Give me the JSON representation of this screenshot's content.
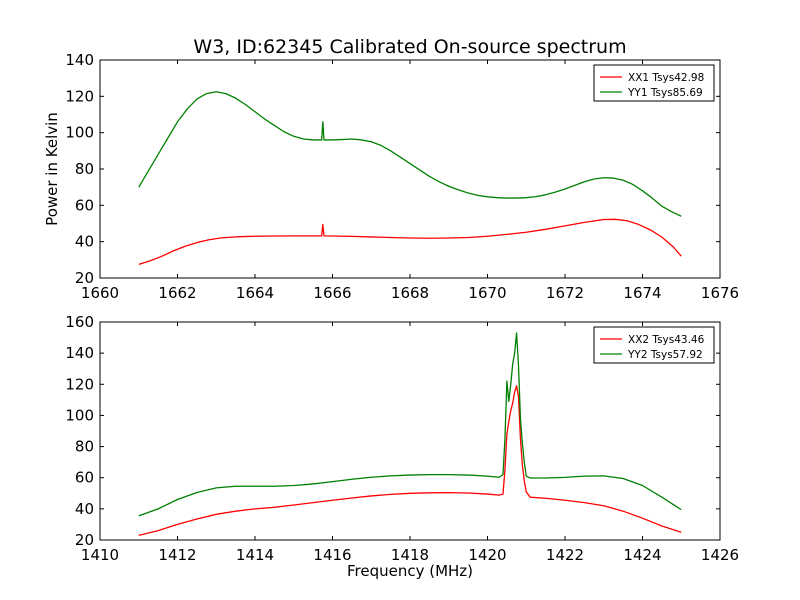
{
  "title": "W3, ID:62345 Calibrated On-source spectrum",
  "chart_data": [
    {
      "type": "line",
      "xlim": [
        1660,
        1676
      ],
      "ylim": [
        20,
        140
      ],
      "xticks": [
        1660,
        1662,
        1664,
        1666,
        1668,
        1670,
        1672,
        1674,
        1676
      ],
      "yticks": [
        20,
        40,
        60,
        80,
        100,
        120,
        140
      ],
      "xlabel": "",
      "ylabel": "Power in Kelvin",
      "grid": false,
      "legend_position": "top-right",
      "series": [
        {
          "name": "XX1 Tsys42.98",
          "color": "#ff0000",
          "x": [
            1661.0,
            1661.3,
            1661.6,
            1661.9,
            1662.2,
            1662.5,
            1662.8,
            1663.1,
            1663.4,
            1663.7,
            1664.0,
            1664.5,
            1665.0,
            1665.5,
            1665.72,
            1665.75,
            1665.78,
            1666.0,
            1666.5,
            1667.0,
            1667.5,
            1668.0,
            1668.5,
            1669.0,
            1669.5,
            1670.0,
            1670.5,
            1671.0,
            1671.5,
            1672.0,
            1672.5,
            1673.0,
            1673.3,
            1673.6,
            1673.9,
            1674.2,
            1674.5,
            1674.8,
            1675.0
          ],
          "values": [
            27.5,
            29.5,
            32,
            35,
            37.5,
            39.5,
            41,
            42,
            42.5,
            42.8,
            43,
            43.1,
            43.2,
            43.2,
            43.2,
            49.5,
            43.2,
            43.1,
            42.9,
            42.6,
            42.3,
            42,
            41.9,
            42,
            42.3,
            43,
            44,
            45.2,
            46.8,
            48.7,
            50.6,
            52.2,
            52.3,
            51.5,
            49.5,
            46.5,
            42.5,
            37,
            32
          ]
        },
        {
          "name": "YY1 Tsys85.69",
          "color": "#008000",
          "x": [
            1661.0,
            1661.25,
            1661.5,
            1661.75,
            1662.0,
            1662.25,
            1662.5,
            1662.75,
            1663.0,
            1663.25,
            1663.5,
            1663.75,
            1664.0,
            1664.25,
            1664.5,
            1664.75,
            1665.0,
            1665.25,
            1665.5,
            1665.72,
            1665.75,
            1665.78,
            1666.0,
            1666.25,
            1666.5,
            1666.75,
            1667.0,
            1667.25,
            1667.5,
            1667.75,
            1668.0,
            1668.25,
            1668.5,
            1668.75,
            1669.0,
            1669.25,
            1669.5,
            1669.75,
            1670.0,
            1670.25,
            1670.5,
            1670.75,
            1671.0,
            1671.25,
            1671.5,
            1671.75,
            1672.0,
            1672.25,
            1672.5,
            1672.75,
            1673.0,
            1673.25,
            1673.5,
            1673.75,
            1674.0,
            1674.25,
            1674.5,
            1674.75,
            1675.0
          ],
          "values": [
            70,
            79,
            88,
            97,
            106,
            113,
            118.5,
            121.5,
            122.5,
            121.5,
            119,
            115.5,
            111.5,
            107.5,
            104,
            100.5,
            98,
            96.5,
            96,
            96,
            106,
            96,
            96,
            96.2,
            96.5,
            96,
            95,
            93,
            90,
            86.5,
            83,
            79.5,
            76,
            73,
            70.5,
            68.5,
            66.8,
            65.5,
            64.7,
            64.2,
            64,
            64,
            64.2,
            64.8,
            65.8,
            67.3,
            69,
            71,
            73,
            74.5,
            75.2,
            75,
            73.8,
            71.5,
            68,
            64,
            59.5,
            56.5,
            54
          ]
        }
      ]
    },
    {
      "type": "line",
      "xlim": [
        1410,
        1426
      ],
      "ylim": [
        20,
        160
      ],
      "xticks": [
        1410,
        1412,
        1414,
        1416,
        1418,
        1420,
        1422,
        1424,
        1426
      ],
      "yticks": [
        20,
        40,
        60,
        80,
        100,
        120,
        140,
        160
      ],
      "xlabel": "Frequency (MHz)",
      "ylabel": "",
      "grid": false,
      "legend_position": "top-right",
      "series": [
        {
          "name": "XX2 Tsys43.46",
          "color": "#ff0000",
          "x": [
            1411.0,
            1411.5,
            1412.0,
            1412.5,
            1413.0,
            1413.5,
            1414.0,
            1414.5,
            1415.0,
            1415.5,
            1416.0,
            1416.5,
            1417.0,
            1417.5,
            1418.0,
            1418.5,
            1419.0,
            1419.5,
            1420.0,
            1420.3,
            1420.4,
            1420.45,
            1420.5,
            1420.55,
            1420.6,
            1420.65,
            1420.7,
            1420.75,
            1420.8,
            1420.85,
            1420.9,
            1420.95,
            1421.0,
            1421.1,
            1421.5,
            1422.0,
            1422.5,
            1423.0,
            1423.5,
            1424.0,
            1424.5,
            1425.0
          ],
          "values": [
            23,
            26,
            30,
            33.5,
            36.5,
            38.5,
            40,
            41,
            42.5,
            44,
            45.5,
            47,
            48.3,
            49.3,
            50,
            50.3,
            50.4,
            50.2,
            49.5,
            48.8,
            49.5,
            65,
            88,
            96,
            103,
            108,
            115,
            119,
            112,
            85,
            68,
            58,
            51,
            47.5,
            46.8,
            45.5,
            44,
            42,
            38.5,
            34,
            29,
            25
          ]
        },
        {
          "name": "YY2 Tsys57.92",
          "color": "#008000",
          "x": [
            1411.0,
            1411.5,
            1412.0,
            1412.5,
            1413.0,
            1413.5,
            1414.0,
            1414.5,
            1415.0,
            1415.5,
            1416.0,
            1416.5,
            1417.0,
            1417.5,
            1418.0,
            1418.5,
            1419.0,
            1419.5,
            1420.0,
            1420.3,
            1420.4,
            1420.45,
            1420.5,
            1420.55,
            1420.6,
            1420.65,
            1420.7,
            1420.75,
            1420.8,
            1420.85,
            1420.9,
            1420.95,
            1421.0,
            1421.1,
            1421.5,
            1422.0,
            1422.5,
            1423.0,
            1423.5,
            1424.0,
            1424.5,
            1425.0
          ],
          "values": [
            35.5,
            40,
            46,
            50.5,
            53.5,
            54.5,
            54.5,
            54.5,
            55,
            56,
            57.5,
            59,
            60.3,
            61.2,
            61.7,
            62,
            62,
            61.7,
            61,
            60.3,
            62,
            85,
            122,
            109,
            120,
            133,
            140,
            153,
            132,
            98,
            82,
            70,
            61,
            59.8,
            59.8,
            60.2,
            61,
            61.2,
            59.5,
            55,
            47.5,
            39.5
          ]
        }
      ]
    }
  ]
}
